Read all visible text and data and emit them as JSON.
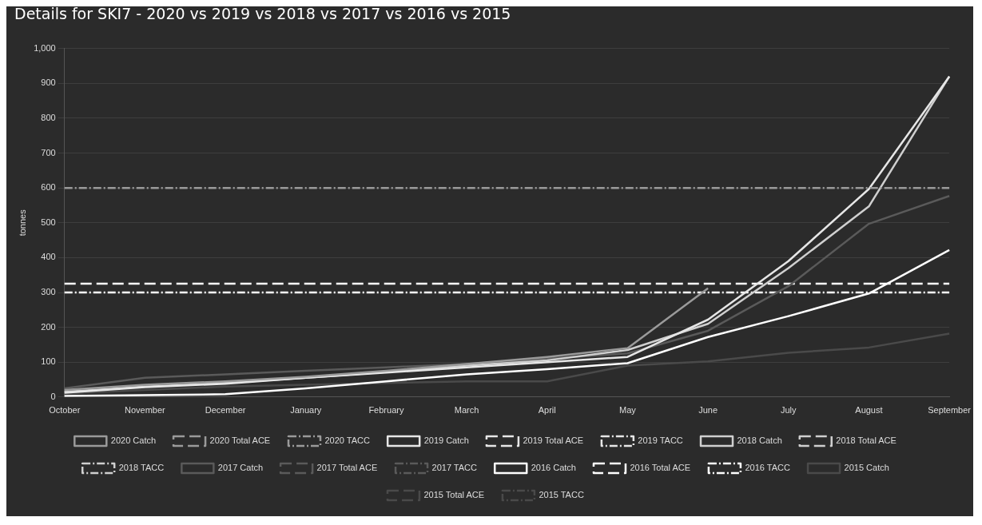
{
  "chart_data": {
    "type": "line",
    "title": "Details for SKI7 - 2020 vs 2019 vs 2018 vs 2017 vs 2016 vs 2015",
    "ylabel": "tonnes",
    "categories": [
      "October",
      "November",
      "December",
      "January",
      "February",
      "March",
      "April",
      "May",
      "June",
      "July",
      "August",
      "September"
    ],
    "ylim": [
      0,
      1000
    ],
    "yticks": [
      0,
      100,
      200,
      300,
      400,
      500,
      600,
      700,
      800,
      900,
      {
        "value": 1000,
        "label": "1,000"
      }
    ],
    "grid": "y",
    "legend": "bottom",
    "marker": "none",
    "series": [
      {
        "name": "2020 Catch",
        "color": "#9a9a9a",
        "line_style": "solid",
        "values": [
          20,
          35,
          45,
          58,
          75,
          95,
          115,
          140,
          312,
          null,
          null,
          null
        ]
      },
      {
        "name": "2020 Total ACE",
        "color": "#9a9a9a",
        "line_style": "dashed",
        "values": [
          null,
          null,
          null,
          null,
          null,
          null,
          null,
          null,
          null,
          null,
          null,
          null
        ]
      },
      {
        "name": "2020 TACC",
        "color": "#9a9a9a",
        "line_style": "dotted",
        "values": [
          600,
          600,
          600,
          600,
          600,
          600,
          600,
          600,
          600,
          600,
          600,
          600
        ]
      },
      {
        "name": "2019 Catch",
        "color": "#e6e6e6",
        "line_style": "solid",
        "values": [
          12,
          28,
          38,
          55,
          70,
          85,
          100,
          115,
          222,
          390,
          597,
          920
        ]
      },
      {
        "name": "2019 Total ACE",
        "color": "#e6e6e6",
        "line_style": "dashed",
        "values": [
          null,
          null,
          null,
          null,
          null,
          null,
          null,
          null,
          null,
          null,
          null,
          null
        ]
      },
      {
        "name": "2019 TACC",
        "color": "#e6e6e6",
        "line_style": "dotted",
        "values": [
          null,
          null,
          null,
          null,
          null,
          null,
          null,
          null,
          null,
          null,
          null,
          null
        ]
      },
      {
        "name": "2018 Catch",
        "color": "#cfcfcf",
        "line_style": "solid",
        "values": [
          15,
          30,
          40,
          55,
          72,
          90,
          105,
          135,
          210,
          370,
          547,
          920
        ]
      },
      {
        "name": "2018 Total ACE",
        "color": "#cfcfcf",
        "line_style": "dashed",
        "values": [
          null,
          null,
          null,
          null,
          null,
          null,
          null,
          null,
          null,
          null,
          null,
          null
        ]
      },
      {
        "name": "2018 TACC",
        "color": "#cfcfcf",
        "line_style": "dotted",
        "values": [
          null,
          null,
          null,
          null,
          null,
          null,
          null,
          null,
          null,
          null,
          null,
          null
        ]
      },
      {
        "name": "2017 Catch",
        "color": "#5a5a5a",
        "line_style": "solid",
        "values": [
          25,
          55,
          65,
          75,
          85,
          95,
          110,
          125,
          190,
          318,
          497,
          577
        ]
      },
      {
        "name": "2017 Total ACE",
        "color": "#5a5a5a",
        "line_style": "dashed",
        "values": [
          null,
          null,
          null,
          null,
          null,
          null,
          null,
          null,
          null,
          null,
          null,
          null
        ]
      },
      {
        "name": "2017 TACC",
        "color": "#5a5a5a",
        "line_style": "dotted",
        "values": [
          null,
          null,
          null,
          null,
          null,
          null,
          null,
          null,
          null,
          null,
          null,
          null
        ]
      },
      {
        "name": "2016 Catch",
        "color": "#ffffff",
        "line_style": "solid",
        "values": [
          3,
          5,
          8,
          25,
          45,
          65,
          80,
          97,
          172,
          232,
          297,
          422
        ]
      },
      {
        "name": "2016 Total ACE",
        "color": "#ffffff",
        "line_style": "dashed",
        "values": [
          325,
          325,
          325,
          325,
          325,
          325,
          325,
          325,
          325,
          325,
          325,
          325
        ]
      },
      {
        "name": "2016 TACC",
        "color": "#ffffff",
        "line_style": "dotted",
        "values": [
          300,
          300,
          300,
          300,
          300,
          300,
          300,
          300,
          300,
          300,
          300,
          300
        ]
      },
      {
        "name": "2015 Catch",
        "color": "#4a4a4a",
        "line_style": "solid",
        "values": [
          10,
          20,
          30,
          35,
          40,
          45,
          45,
          90,
          102,
          127,
          142,
          182
        ]
      },
      {
        "name": "2015 Total ACE",
        "color": "#4a4a4a",
        "line_style": "dashed",
        "values": [
          null,
          null,
          null,
          null,
          null,
          null,
          null,
          null,
          null,
          null,
          null,
          null
        ]
      },
      {
        "name": "2015 TACC",
        "color": "#4a4a4a",
        "line_style": "dotted",
        "values": [
          null,
          null,
          null,
          null,
          null,
          null,
          null,
          null,
          null,
          null,
          null,
          null
        ]
      }
    ]
  }
}
